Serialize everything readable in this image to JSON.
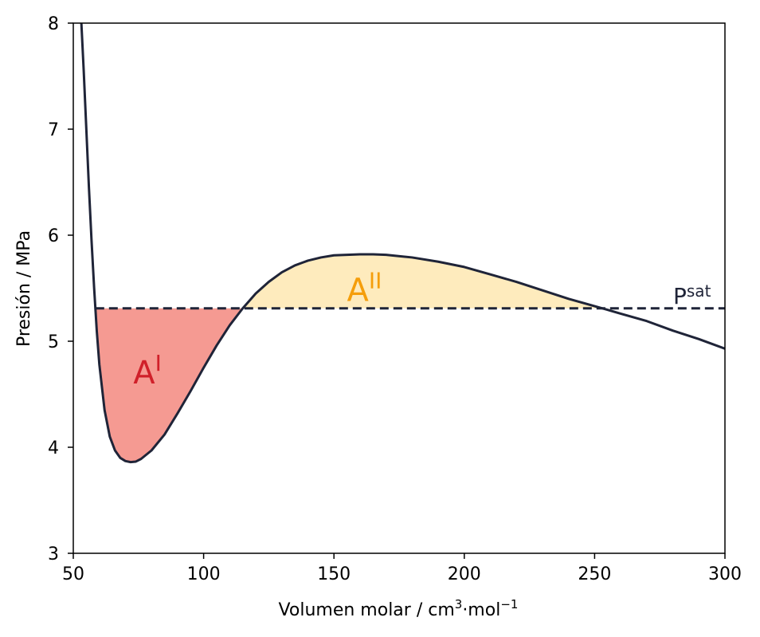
{
  "chart_data": {
    "type": "line",
    "title": "",
    "xlabel": "Volumen molar / cm",
    "xlabel_sup1": "3",
    "xlabel_mid": "·mol",
    "xlabel_sup2": "−1",
    "ylabel": "Presión / MPa",
    "xlim": [
      50,
      300
    ],
    "ylim": [
      3,
      8
    ],
    "xticks": [
      50,
      100,
      150,
      200,
      250,
      300
    ],
    "yticks": [
      3,
      4,
      5,
      6,
      7,
      8
    ],
    "xtick_labels": [
      "50",
      "100",
      "150",
      "200",
      "250",
      "300"
    ],
    "ytick_labels": [
      "3",
      "4",
      "5",
      "6",
      "7",
      "8"
    ],
    "grid": false,
    "series": [
      {
        "style": "solid",
        "color": "#1f2438",
        "points": [
          [
            53.0,
            8.05
          ],
          [
            54.0,
            7.55
          ],
          [
            55.0,
            7.0
          ],
          [
            56.0,
            6.45
          ],
          [
            57.0,
            5.95
          ],
          [
            58.0,
            5.5
          ],
          [
            59.0,
            5.1
          ],
          [
            60.0,
            4.78
          ],
          [
            62.0,
            4.35
          ],
          [
            64.0,
            4.1
          ],
          [
            66.0,
            3.97
          ],
          [
            68.0,
            3.9
          ],
          [
            70.0,
            3.87
          ],
          [
            72.0,
            3.86
          ],
          [
            74.0,
            3.865
          ],
          [
            76.0,
            3.89
          ],
          [
            80.0,
            3.97
          ],
          [
            85.0,
            4.12
          ],
          [
            90.0,
            4.32
          ],
          [
            95.0,
            4.53
          ],
          [
            100.0,
            4.75
          ],
          [
            105.0,
            4.96
          ],
          [
            110.0,
            5.15
          ],
          [
            115.0,
            5.31
          ],
          [
            120.0,
            5.45
          ],
          [
            125.0,
            5.56
          ],
          [
            130.0,
            5.65
          ],
          [
            135.0,
            5.715
          ],
          [
            140.0,
            5.76
          ],
          [
            145.0,
            5.79
          ],
          [
            150.0,
            5.81
          ],
          [
            160.0,
            5.82
          ],
          [
            165.0,
            5.82
          ],
          [
            170.0,
            5.815
          ],
          [
            180.0,
            5.79
          ],
          [
            190.0,
            5.75
          ],
          [
            200.0,
            5.7
          ],
          [
            210.0,
            5.63
          ],
          [
            220.0,
            5.56
          ],
          [
            230.0,
            5.48
          ],
          [
            240.0,
            5.4
          ],
          [
            253.0,
            5.31
          ],
          [
            260.0,
            5.26
          ],
          [
            270.0,
            5.19
          ],
          [
            280.0,
            5.1
          ],
          [
            290.0,
            5.02
          ],
          [
            300.0,
            4.93
          ]
        ]
      },
      {
        "style": "dashed",
        "color": "#1f2438",
        "points": [
          [
            58.5,
            5.31
          ],
          [
            300.0,
            5.31
          ]
        ]
      }
    ],
    "psat": 5.31,
    "areas": [
      {
        "name": "A",
        "sup": "I",
        "x_from": 58.5,
        "x_to": 115.0,
        "fill": "#f59a92",
        "label_color": "#d0202a",
        "label_x": 73,
        "label_y": 4.6
      },
      {
        "name": "A",
        "sup": "II",
        "x_from": 115.0,
        "x_to": 253.0,
        "fill": "#feebbd",
        "label_color": "#f59e0b",
        "label_x": 155,
        "label_y": 5.38
      }
    ],
    "annotations": [
      {
        "text": "P",
        "sup": "sat",
        "x": 280,
        "y": 5.39,
        "color": "#1f2438"
      }
    ]
  }
}
